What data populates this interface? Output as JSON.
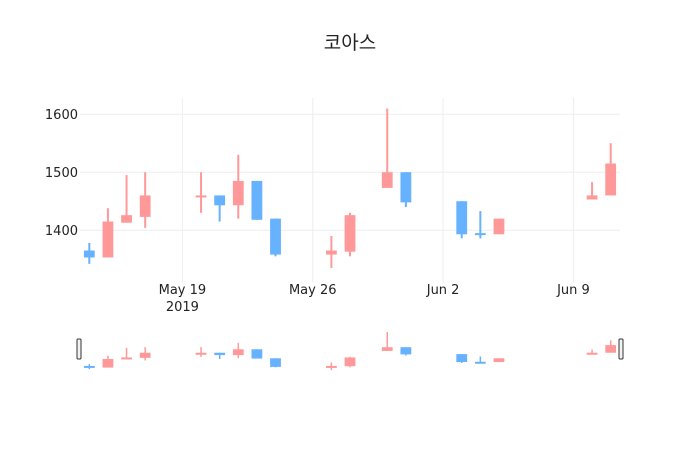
{
  "chart_data": {
    "type": "candlestick",
    "title": "코아스",
    "xlabel": "",
    "ylabel": "",
    "ylim": [
      1309,
      1628
    ],
    "xlim": [
      "2019-05-13T12:00",
      "2019-06-11T12:00"
    ],
    "grid": true,
    "legend": false,
    "y_ticks": [
      1400,
      1500,
      1600
    ],
    "x_ticks": [
      {
        "date": "2019-05-19",
        "label": "May 19",
        "sublabel": "2019"
      },
      {
        "date": "2019-05-26",
        "label": "May 26",
        "sublabel": ""
      },
      {
        "date": "2019-06-02",
        "label": "Jun 2",
        "sublabel": ""
      },
      {
        "date": "2019-06-09",
        "label": "Jun 9",
        "sublabel": ""
      }
    ],
    "colors": {
      "increasing": "#ff9999",
      "decreasing": "#66b2ff"
    },
    "rangeslider": true,
    "data": [
      {
        "date": "2019-05-14",
        "open": 1365,
        "high": 1378,
        "low": 1342,
        "close": 1353
      },
      {
        "date": "2019-05-15",
        "open": 1353,
        "high": 1438,
        "low": 1353,
        "close": 1415
      },
      {
        "date": "2019-05-16",
        "open": 1413,
        "high": 1495,
        "low": 1413,
        "close": 1426
      },
      {
        "date": "2019-05-17",
        "open": 1423,
        "high": 1500,
        "low": 1404,
        "close": 1460
      },
      {
        "date": "2019-05-20",
        "open": 1458,
        "high": 1500,
        "low": 1430,
        "close": 1460
      },
      {
        "date": "2019-05-21",
        "open": 1460,
        "high": 1460,
        "low": 1415,
        "close": 1443
      },
      {
        "date": "2019-05-22",
        "open": 1443,
        "high": 1530,
        "low": 1420,
        "close": 1485
      },
      {
        "date": "2019-05-23",
        "open": 1485,
        "high": 1485,
        "low": 1418,
        "close": 1418
      },
      {
        "date": "2019-05-24",
        "open": 1420,
        "high": 1420,
        "low": 1355,
        "close": 1358
      },
      {
        "date": "2019-05-27",
        "open": 1358,
        "high": 1390,
        "low": 1335,
        "close": 1365
      },
      {
        "date": "2019-05-28",
        "open": 1363,
        "high": 1430,
        "low": 1355,
        "close": 1426
      },
      {
        "date": "2019-05-30",
        "open": 1473,
        "high": 1610,
        "low": 1473,
        "close": 1500
      },
      {
        "date": "2019-05-31",
        "open": 1500,
        "high": 1500,
        "low": 1440,
        "close": 1448
      },
      {
        "date": "2019-06-03",
        "open": 1450,
        "high": 1450,
        "low": 1386,
        "close": 1393
      },
      {
        "date": "2019-06-04",
        "open": 1395,
        "high": 1433,
        "low": 1386,
        "close": 1393
      },
      {
        "date": "2019-06-05",
        "open": 1393,
        "high": 1420,
        "low": 1393,
        "close": 1420
      },
      {
        "date": "2019-06-10",
        "open": 1453,
        "high": 1483,
        "low": 1453,
        "close": 1460
      },
      {
        "date": "2019-06-11",
        "open": 1460,
        "high": 1550,
        "low": 1460,
        "close": 1515
      }
    ]
  }
}
